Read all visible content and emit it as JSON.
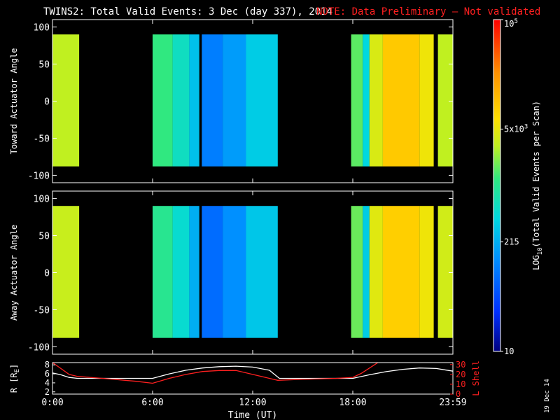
{
  "header": {
    "title": "TWINS2: Total Valid Events:  3 Dec (day 337), 2014",
    "note": "NOTE: Data Preliminary – Not validated",
    "note_color": "#ff2020"
  },
  "stamp": "19 Dec 14",
  "chart_data": [
    {
      "type": "heatmap",
      "name": "toward",
      "ylabel": "Toward Actuator Angle",
      "xlim": [
        0,
        24
      ],
      "ylim": [
        -110,
        110
      ],
      "yticks": [
        "100",
        "50",
        "0",
        "-50",
        "-100"
      ],
      "ytick_values": [
        100,
        50,
        0,
        -50,
        -100
      ],
      "data_y_range": [
        -88,
        90
      ],
      "segments": [
        {
          "start": 0.0,
          "end": 1.6,
          "level": 0.62
        },
        {
          "start": 6.0,
          "end": 7.2,
          "level": 0.52
        },
        {
          "start": 7.2,
          "end": 8.2,
          "level": 0.44
        },
        {
          "start": 8.2,
          "end": 8.8,
          "level": 0.36
        },
        {
          "start": 8.95,
          "end": 10.2,
          "level": 0.25
        },
        {
          "start": 10.2,
          "end": 11.6,
          "level": 0.3
        },
        {
          "start": 11.6,
          "end": 13.5,
          "level": 0.38
        },
        {
          "start": 17.9,
          "end": 18.6,
          "level": 0.55
        },
        {
          "start": 18.6,
          "end": 19.0,
          "level": 0.4
        },
        {
          "start": 19.0,
          "end": 19.8,
          "level": 0.65
        },
        {
          "start": 19.8,
          "end": 22.0,
          "level": 0.74
        },
        {
          "start": 22.0,
          "end": 22.85,
          "level": 0.68
        },
        {
          "start": 23.1,
          "end": 24.0,
          "level": 0.62
        }
      ]
    },
    {
      "type": "heatmap",
      "name": "away",
      "ylabel": "Away Actuator Angle",
      "xlim": [
        0,
        24
      ],
      "ylim": [
        -110,
        110
      ],
      "yticks": [
        "100",
        "50",
        "0",
        "-50",
        "-100"
      ],
      "ytick_values": [
        100,
        50,
        0,
        -50,
        -100
      ],
      "data_y_range": [
        -88,
        90
      ],
      "segments": [
        {
          "start": 0.0,
          "end": 1.6,
          "level": 0.63
        },
        {
          "start": 6.0,
          "end": 7.2,
          "level": 0.5
        },
        {
          "start": 7.2,
          "end": 8.2,
          "level": 0.42
        },
        {
          "start": 8.2,
          "end": 8.8,
          "level": 0.33
        },
        {
          "start": 8.95,
          "end": 10.2,
          "level": 0.22
        },
        {
          "start": 10.2,
          "end": 11.6,
          "level": 0.28
        },
        {
          "start": 11.6,
          "end": 13.5,
          "level": 0.37
        },
        {
          "start": 17.9,
          "end": 18.6,
          "level": 0.56
        },
        {
          "start": 18.6,
          "end": 19.0,
          "level": 0.38
        },
        {
          "start": 19.0,
          "end": 19.8,
          "level": 0.66
        },
        {
          "start": 19.8,
          "end": 22.0,
          "level": 0.73
        },
        {
          "start": 22.0,
          "end": 22.85,
          "level": 0.68
        },
        {
          "start": 23.1,
          "end": 24.0,
          "level": 0.64
        }
      ]
    },
    {
      "type": "line",
      "name": "ephemeris",
      "xlabel": "Time (UT)",
      "xticks": [
        "0:00",
        "6:00",
        "12:00",
        "18:00",
        "23:59"
      ],
      "xtick_values": [
        0,
        6,
        12,
        18,
        24
      ],
      "ylabel_left": "R [R",
      "ylabel_left_sub": "E",
      "ylabel_left_end": "]",
      "ylabel_right": "L Shell",
      "ylim_left": [
        1.5,
        8.5
      ],
      "yticks_left": [
        "8",
        "6",
        "4",
        "2"
      ],
      "ytick_values_left": [
        8,
        6,
        4,
        2
      ],
      "ylim_right": [
        0,
        32
      ],
      "yticks_right": [
        "30",
        "20",
        "10",
        "0"
      ],
      "ytick_values_right": [
        30,
        20,
        10,
        0
      ],
      "series": [
        {
          "axis": "left",
          "color": "#ffffff",
          "x": [
            0,
            0.5,
            1.0,
            1.5,
            3,
            5,
            6,
            7,
            8,
            9,
            10,
            11,
            12,
            13,
            13.6,
            15,
            17,
            18,
            19,
            20,
            21,
            22,
            23,
            24
          ],
          "y": [
            6.2,
            5.8,
            5.2,
            5.0,
            5.0,
            5.0,
            5.0,
            6.0,
            6.8,
            7.3,
            7.6,
            7.7,
            7.5,
            6.8,
            5.0,
            5.0,
            5.0,
            5.0,
            5.8,
            6.5,
            7.0,
            7.3,
            7.2,
            6.6
          ]
        },
        {
          "axis": "right",
          "color": "#ff2020",
          "x": [
            0,
            0.5,
            1.0,
            1.5,
            3,
            5,
            6,
            7,
            8,
            9,
            10,
            11,
            12,
            13,
            13.5,
            15,
            17,
            18,
            18.5,
            19.5
          ],
          "y": [
            32,
            26,
            20,
            18,
            16,
            13,
            11,
            16,
            20,
            23,
            24,
            24,
            20,
            16,
            14,
            15,
            16,
            17,
            21,
            32
          ]
        }
      ]
    }
  ],
  "colorbar": {
    "label_prefix": "LOG",
    "label_sub": "10",
    "label_main": "(Total Valid Events per Scan)",
    "ticks": [
      {
        "label": "10",
        "level": 0.0
      },
      {
        "label": "215",
        "level": 0.33
      },
      {
        "label": "5x10",
        "sup": "3",
        "level": 0.67
      },
      {
        "label": "10",
        "sup": "5",
        "level": 1.0
      }
    ]
  }
}
